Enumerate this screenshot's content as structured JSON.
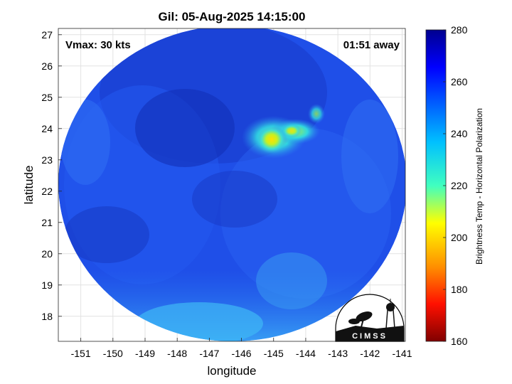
{
  "title": "Gil: 05-Aug-2025 14:15:00",
  "annotations": {
    "vmax": "Vmax: 30 kts",
    "time_away": "01:51 away"
  },
  "axes": {
    "xlabel": "longitude",
    "ylabel": "latitude",
    "x_ticks": [
      "-151",
      "-150",
      "-149",
      "-148",
      "-147",
      "-146",
      "-145",
      "-144",
      "-143",
      "-142",
      "-141"
    ],
    "y_ticks": [
      "27",
      "26",
      "25",
      "24",
      "23",
      "22",
      "21",
      "20",
      "19",
      "18"
    ],
    "xlim": [
      -151.7,
      -140.9
    ],
    "ylim": [
      17.2,
      27.2
    ]
  },
  "colorbar": {
    "label": "Brightness Temp - Horizontal Polarization",
    "ticks": [
      "280",
      "260",
      "240",
      "220",
      "200",
      "180",
      "160"
    ],
    "range": [
      160,
      280
    ]
  },
  "logo": {
    "text": "CIMSS"
  },
  "colors": {
    "background_field": "#1f4fe8",
    "cold_core": "#ffd400",
    "deep_blue": "#1538c0"
  }
}
